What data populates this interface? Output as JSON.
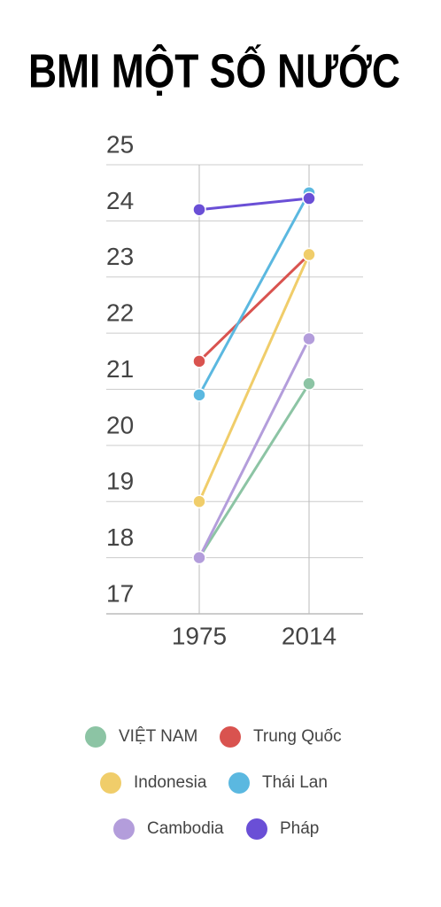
{
  "chart_data": {
    "type": "line",
    "title": "BMI MỘT SỐ NƯỚC",
    "categories": [
      "1975",
      "2014"
    ],
    "series": [
      {
        "name": "VIỆT NAM",
        "color": "#8cc4a4",
        "values": [
          18.0,
          21.1
        ]
      },
      {
        "name": "Trung Quốc",
        "color": "#d9534f",
        "values": [
          21.5,
          23.4
        ]
      },
      {
        "name": "Indonesia",
        "color": "#f0cd6a",
        "values": [
          19.0,
          23.4
        ]
      },
      {
        "name": "Thái Lan",
        "color": "#5bb8e0",
        "values": [
          20.9,
          24.5
        ]
      },
      {
        "name": "Cambodia",
        "color": "#b39ddb",
        "values": [
          18.0,
          21.9
        ]
      },
      {
        "name": "Pháp",
        "color": "#6a4fd6",
        "values": [
          24.2,
          24.4
        ]
      }
    ],
    "ylim": [
      17,
      25
    ],
    "yticks": [
      17,
      18,
      19,
      20,
      21,
      22,
      23,
      24,
      25
    ],
    "grid": true
  }
}
